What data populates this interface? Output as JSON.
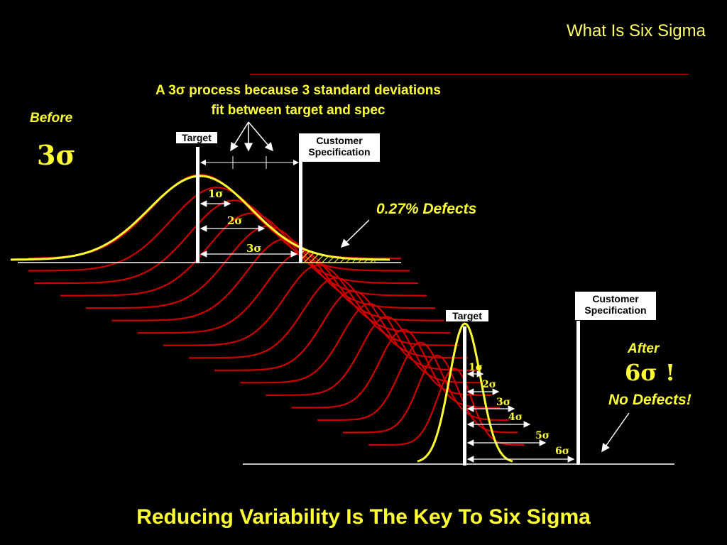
{
  "slide_title": "What Is Six Sigma",
  "caption_line1": "A 3σ process because 3 standard deviations",
  "caption_line2": "fit between target and spec",
  "before": {
    "label": "Before",
    "sigma_level": "3σ",
    "target_label": "Target",
    "spec_label_line1": "Customer",
    "spec_label_line2": "Specification",
    "sigma_marks": [
      "1σ",
      "2σ",
      "3σ"
    ],
    "defects_label": "0.27% Defects"
  },
  "after": {
    "label": "After",
    "sigma_level": "6σ !",
    "target_label": "Target",
    "spec_label_line1": "Customer",
    "spec_label_line2": "Specification",
    "sigma_marks": [
      "1σ",
      "2σ",
      "3σ",
      "4σ",
      "5σ",
      "6σ"
    ],
    "defects_label": "No Defects!"
  },
  "footer_title": "Reducing Variability Is The Key To Six Sigma",
  "colors": {
    "background": "#000000",
    "highlight": "#ffff33",
    "curves": "#cc0000"
  }
}
